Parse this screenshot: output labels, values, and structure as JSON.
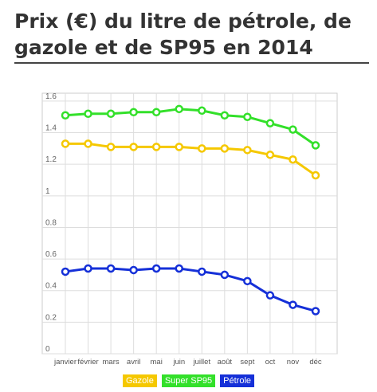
{
  "title": "Prix (€) du litre de pétrole, de gazole et de SP95 en 2014",
  "chart_data": {
    "type": "line",
    "title": "Prix (€) du litre de pétrole, de gazole et de SP95 en 2014",
    "xlabel": "",
    "ylabel": "",
    "categories": [
      "janvier",
      "février",
      "mars",
      "avril",
      "mai",
      "juin",
      "juillet",
      "août",
      "sept",
      "oct",
      "nov",
      "déc"
    ],
    "yticks": [
      "0",
      "0.2",
      "0.4",
      "0.6",
      "0.8",
      "1",
      "1.2",
      "1.4",
      "1.6"
    ],
    "ylim": [
      0,
      1.65
    ],
    "grid": true,
    "legend_position": "bottom",
    "series": [
      {
        "name": "Gazole",
        "color": "#f5c800",
        "values": [
          1.33,
          1.33,
          1.31,
          1.31,
          1.31,
          1.31,
          1.3,
          1.3,
          1.29,
          1.26,
          1.23,
          1.13
        ]
      },
      {
        "name": "Super SP95",
        "color": "#33e02a",
        "values": [
          1.51,
          1.52,
          1.52,
          1.53,
          1.53,
          1.55,
          1.54,
          1.51,
          1.5,
          1.46,
          1.42,
          1.32
        ]
      },
      {
        "name": "Pétrole",
        "color": "#1530d8",
        "values": [
          0.52,
          0.54,
          0.54,
          0.53,
          0.54,
          0.54,
          0.52,
          0.5,
          0.46,
          0.37,
          0.31,
          0.27
        ]
      }
    ]
  }
}
